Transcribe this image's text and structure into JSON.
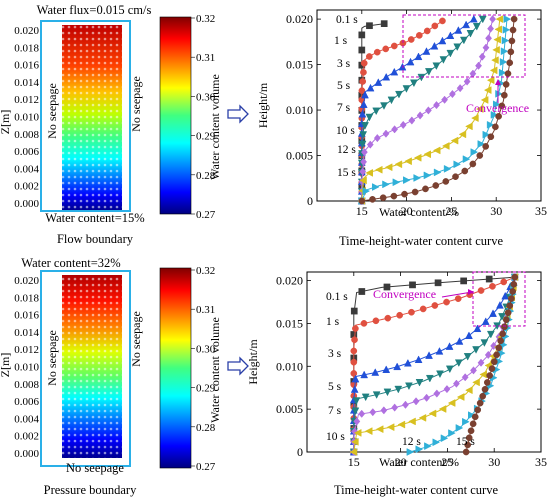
{
  "top_left": {
    "title": "Water flux=0.015 cm/s",
    "left_label": "No seepage",
    "right_label": "No seepage",
    "bottom_label": "Water content=15%",
    "caption": "Flow boundary",
    "z_label": "Z[m]",
    "z_ticks": [
      "0.020",
      "0.018",
      "0.016",
      "0.014",
      "0.012",
      "0.010",
      "0.008",
      "0.006",
      "0.004",
      "0.002",
      "0.000"
    ],
    "colorbar_label": "Water content volume",
    "colorbar_ticks": [
      "0.32",
      "0.31",
      "0.30",
      "0.29",
      "0.28",
      "0.27"
    ]
  },
  "bottom_left": {
    "title": "Water content=32%",
    "left_label": "No seepage",
    "right_label": "No seepage",
    "bottom_label": "No seepage",
    "caption": "Pressure boundary",
    "z_label": "Z[m]",
    "z_ticks": [
      "0.020",
      "0.018",
      "0.016",
      "0.014",
      "0.012",
      "0.010",
      "0.008",
      "0.006",
      "0.004",
      "0.002",
      "0.000"
    ],
    "colorbar_label": "Water content volume",
    "colorbar_ticks": [
      "0.32",
      "0.31",
      "0.30",
      "0.29",
      "0.28",
      "0.27"
    ]
  },
  "colors": {
    "box_border": "#2ab0e8",
    "arrow": "#2a3fa8",
    "annotation": "#c000c0"
  },
  "chart_data": [
    {
      "type": "line",
      "xlabel": "Water content/%",
      "ylabel": "Height/m",
      "caption": "Time-height-water content curve",
      "xlim": [
        10,
        35
      ],
      "ylim": [
        0,
        0.021
      ],
      "x_ticks": [
        "15",
        "20",
        "25",
        "30",
        "35"
      ],
      "y_ticks": [
        "0",
        "0.005",
        "0.010",
        "0.015",
        "0.020"
      ],
      "annotation": "Convergence",
      "series": [
        {
          "name": "0.1 s",
          "color": "#3a3a3a",
          "marker": "square",
          "x": [
            15,
            15,
            15,
            15,
            15,
            15,
            15.3,
            17.5
          ],
          "y": [
            0,
            0.005,
            0.01,
            0.015,
            0.018,
            0.019,
            0.0192,
            0.0195
          ]
        },
        {
          "name": "1 s",
          "color": "#e05040",
          "marker": "circle",
          "x": [
            15,
            15,
            15,
            15,
            15.3,
            16,
            17,
            18.5,
            20,
            22,
            24
          ],
          "y": [
            0,
            0.004,
            0.008,
            0.012,
            0.0155,
            0.016,
            0.0165,
            0.017,
            0.0175,
            0.0185,
            0.0198
          ]
        },
        {
          "name": "3 s",
          "color": "#2050d8",
          "marker": "triangle",
          "x": [
            15,
            15,
            15,
            15,
            15.4,
            16.5,
            18,
            20,
            22,
            24,
            26,
            27.5
          ],
          "y": [
            0,
            0.003,
            0.006,
            0.009,
            0.012,
            0.0128,
            0.0138,
            0.015,
            0.0163,
            0.0176,
            0.0189,
            0.02
          ]
        },
        {
          "name": "5 s",
          "color": "#208080",
          "marker": "triangle-down",
          "x": [
            15,
            15,
            15,
            15.2,
            16,
            17.5,
            19.5,
            21.5,
            23.5,
            25.5,
            27.5,
            28.5
          ],
          "y": [
            0,
            0.002,
            0.005,
            0.008,
            0.0095,
            0.0105,
            0.012,
            0.0135,
            0.015,
            0.0168,
            0.0188,
            0.02
          ]
        },
        {
          "name": "7 s",
          "color": "#b070e0",
          "marker": "diamond",
          "x": [
            15,
            15,
            15.3,
            16.5,
            18.5,
            20.5,
            22.5,
            24.5,
            26.5,
            28,
            29,
            29.6
          ],
          "y": [
            0,
            0.002,
            0.0055,
            0.0068,
            0.0078,
            0.0088,
            0.01,
            0.0113,
            0.0128,
            0.0148,
            0.0172,
            0.02
          ]
        },
        {
          "name": "10 s",
          "color": "#d8c020",
          "marker": "triangle-left",
          "x": [
            15,
            15.2,
            16,
            18,
            20,
            22,
            24,
            26,
            27.5,
            28.8,
            29.8,
            30.4
          ],
          "y": [
            0,
            0.0025,
            0.0032,
            0.0037,
            0.0043,
            0.005,
            0.0058,
            0.007,
            0.0088,
            0.0112,
            0.0145,
            0.02
          ]
        },
        {
          "name": "12 s",
          "color": "#30b0d8",
          "marker": "triangle-right",
          "x": [
            15,
            15.5,
            17,
            19,
            21,
            23,
            25,
            27,
            28.5,
            29.7,
            30.6,
            31.2
          ],
          "y": [
            0,
            0.0012,
            0.0017,
            0.0021,
            0.0025,
            0.003,
            0.0037,
            0.0048,
            0.0065,
            0.0092,
            0.0133,
            0.02
          ]
        },
        {
          "name": "15 s",
          "color": "#7a4030",
          "marker": "circle",
          "x": [
            15,
            17,
            19,
            21,
            23,
            25,
            27,
            28.5,
            29.8,
            30.8,
            31.5,
            32
          ],
          "y": [
            0,
            0.0003,
            0.0006,
            0.001,
            0.0016,
            0.0024,
            0.0036,
            0.0054,
            0.0078,
            0.011,
            0.0151,
            0.02
          ]
        }
      ]
    },
    {
      "type": "line",
      "xlabel": "Water content/%",
      "ylabel": "Height/m",
      "caption": "Time-height-water content curve",
      "xlim": [
        10,
        35
      ],
      "ylim": [
        0,
        0.021
      ],
      "x_ticks": [
        "15",
        "20",
        "25",
        "30",
        "35"
      ],
      "y_ticks": [
        "0",
        "0.005",
        "0.010",
        "0.015",
        "0.020"
      ],
      "annotation": "Convergence",
      "series": [
        {
          "name": "0.1 s",
          "color": "#3a3a3a",
          "marker": "square",
          "x": [
            15,
            15,
            15,
            15,
            15,
            15.3,
            18,
            23.5,
            32.2
          ],
          "y": [
            0,
            0.004,
            0.008,
            0.012,
            0.016,
            0.0186,
            0.0192,
            0.0197,
            0.0204
          ]
        },
        {
          "name": "1 s",
          "color": "#e05040",
          "marker": "circle",
          "x": [
            15,
            15,
            15,
            15,
            15.2,
            16.5,
            19,
            21.5,
            24,
            26.5,
            28.5,
            30.5,
            32.2
          ],
          "y": [
            0,
            0.004,
            0.008,
            0.012,
            0.0148,
            0.0151,
            0.0157,
            0.0164,
            0.0172,
            0.018,
            0.0188,
            0.0196,
            0.0204
          ]
        },
        {
          "name": "3 s",
          "color": "#2050d8",
          "marker": "triangle",
          "x": [
            15,
            15,
            15,
            15.2,
            17,
            19.5,
            22,
            24.5,
            27,
            29,
            30.5,
            31.5,
            32.2
          ],
          "y": [
            0,
            0.003,
            0.006,
            0.0088,
            0.0092,
            0.0099,
            0.0108,
            0.0119,
            0.0133,
            0.0151,
            0.0169,
            0.0188,
            0.0204
          ]
        },
        {
          "name": "5 s",
          "color": "#208080",
          "marker": "triangle-down",
          "x": [
            15,
            15,
            15.3,
            17.5,
            20,
            22.5,
            25,
            27,
            29,
            30.5,
            31.4,
            32,
            32.2
          ],
          "y": [
            0,
            0.003,
            0.0062,
            0.0067,
            0.0074,
            0.0083,
            0.0095,
            0.011,
            0.0128,
            0.015,
            0.0172,
            0.0192,
            0.0204
          ]
        },
        {
          "name": "7 s",
          "color": "#b070e0",
          "marker": "diamond",
          "x": [
            15,
            15,
            15.5,
            18,
            20.5,
            23,
            25.5,
            27.5,
            29.3,
            30.6,
            31.5,
            32,
            32.2
          ],
          "y": [
            0,
            0.002,
            0.0044,
            0.0048,
            0.0055,
            0.0064,
            0.0076,
            0.0092,
            0.0112,
            0.0136,
            0.0162,
            0.0186,
            0.0204
          ]
        },
        {
          "name": "10 s",
          "color": "#d8c020",
          "marker": "triangle-left",
          "x": [
            15,
            15.3,
            17,
            19.5,
            22,
            24.5,
            27,
            29,
            30.4,
            31.3,
            31.9,
            32.2
          ],
          "y": [
            0,
            0.0022,
            0.0025,
            0.003,
            0.0038,
            0.005,
            0.0068,
            0.0092,
            0.0122,
            0.0152,
            0.0182,
            0.0204
          ]
        },
        {
          "name": "12 s",
          "color": "#30b0d8",
          "marker": "triangle-right",
          "x": [
            21,
            22.5,
            24.5,
            26.5,
            28.3,
            29.7,
            30.7,
            31.4,
            31.9,
            32.2
          ],
          "y": [
            0,
            0.0005,
            0.0015,
            0.003,
            0.0052,
            0.008,
            0.0112,
            0.0145,
            0.0177,
            0.0204
          ]
        },
        {
          "name": "15 s",
          "color": "#7a4030",
          "marker": "circle",
          "x": [
            27,
            27.4,
            28,
            28.8,
            29.6,
            30.4,
            31,
            31.5,
            31.9,
            32.1,
            32.2
          ],
          "y": [
            0,
            0.002,
            0.0042,
            0.0066,
            0.0092,
            0.0118,
            0.0142,
            0.0163,
            0.0182,
            0.0196,
            0.0204
          ]
        }
      ]
    }
  ]
}
